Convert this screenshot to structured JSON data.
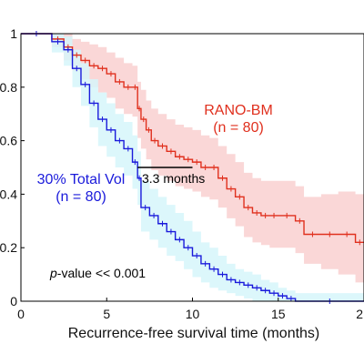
{
  "chart_data": {
    "type": "line",
    "subtype": "kaplan-meier",
    "title": "",
    "xlabel": "Recurrence-free survival time (months)",
    "ylabel": "",
    "xlim": [
      0,
      20
    ],
    "ylim": [
      0,
      1
    ],
    "x_ticks": [
      "0",
      "5",
      "10",
      "15",
      "2"
    ],
    "y_ticks": [
      "0",
      "0.2",
      "0.4",
      "0.6",
      "0.8",
      "1"
    ],
    "grid": false,
    "series": [
      {
        "name": "RANO-BM",
        "count_label": "(n = 80)",
        "color": "#e0301e",
        "band_color": "#f9d0d0",
        "x": [
          0,
          1.8,
          2.5,
          3.0,
          3.5,
          4.0,
          4.5,
          5.0,
          5.5,
          6.0,
          6.5,
          6.8,
          7.0,
          7.3,
          7.6,
          8.0,
          8.5,
          9.0,
          9.5,
          10.0,
          10.5,
          11.0,
          11.5,
          12.0,
          12.5,
          13.0,
          13.5,
          14.0,
          14.5,
          15.0,
          16.0,
          16.5,
          17.5,
          18.5,
          19.5,
          20.0
        ],
        "y": [
          1.0,
          0.98,
          0.95,
          0.92,
          0.9,
          0.88,
          0.87,
          0.85,
          0.82,
          0.8,
          0.8,
          0.72,
          0.68,
          0.64,
          0.6,
          0.58,
          0.56,
          0.54,
          0.53,
          0.52,
          0.5,
          0.5,
          0.46,
          0.42,
          0.39,
          0.35,
          0.33,
          0.32,
          0.32,
          0.32,
          0.3,
          0.25,
          0.25,
          0.25,
          0.22,
          0.22
        ],
        "band_upper": [
          1.0,
          1.0,
          1.0,
          0.98,
          0.97,
          0.96,
          0.95,
          0.93,
          0.91,
          0.89,
          0.88,
          0.82,
          0.79,
          0.75,
          0.72,
          0.7,
          0.68,
          0.66,
          0.65,
          0.64,
          0.62,
          0.61,
          0.58,
          0.55,
          0.52,
          0.48,
          0.46,
          0.45,
          0.45,
          0.45,
          0.43,
          0.39,
          0.4,
          0.41,
          0.4,
          0.4
        ],
        "band_lower": [
          1.0,
          0.95,
          0.9,
          0.86,
          0.83,
          0.8,
          0.78,
          0.76,
          0.72,
          0.7,
          0.69,
          0.61,
          0.57,
          0.53,
          0.49,
          0.47,
          0.45,
          0.43,
          0.42,
          0.41,
          0.39,
          0.38,
          0.35,
          0.31,
          0.28,
          0.24,
          0.22,
          0.21,
          0.2,
          0.2,
          0.18,
          0.14,
          0.12,
          0.1,
          0.07,
          0.06
        ]
      },
      {
        "name": "30% Total Vol",
        "count_label": "(n = 80)",
        "color": "#1a1adb",
        "band_color": "#d6f6fa",
        "x": [
          0,
          1.8,
          2.5,
          3.0,
          3.5,
          4.0,
          4.5,
          5.0,
          5.5,
          6.0,
          6.5,
          6.8,
          7.0,
          7.5,
          8.0,
          8.5,
          9.0,
          9.5,
          10.0,
          10.5,
          11.0,
          11.5,
          12.0,
          12.5,
          13.0,
          13.5,
          14.0,
          14.5,
          15.0,
          15.5,
          16.0,
          20.0
        ],
        "y": [
          1.0,
          0.97,
          0.94,
          0.87,
          0.81,
          0.74,
          0.68,
          0.64,
          0.6,
          0.57,
          0.52,
          0.46,
          0.35,
          0.32,
          0.29,
          0.26,
          0.23,
          0.2,
          0.17,
          0.14,
          0.12,
          0.1,
          0.08,
          0.07,
          0.06,
          0.05,
          0.04,
          0.03,
          0.02,
          0.01,
          0.0,
          0.0
        ],
        "band_upper": [
          1.0,
          1.0,
          0.99,
          0.94,
          0.89,
          0.83,
          0.78,
          0.74,
          0.7,
          0.67,
          0.62,
          0.56,
          0.45,
          0.42,
          0.39,
          0.36,
          0.33,
          0.3,
          0.26,
          0.22,
          0.2,
          0.17,
          0.14,
          0.12,
          0.11,
          0.1,
          0.08,
          0.07,
          0.05,
          0.04,
          0.03,
          0.03
        ],
        "band_lower": [
          1.0,
          0.93,
          0.88,
          0.8,
          0.73,
          0.65,
          0.58,
          0.54,
          0.5,
          0.47,
          0.42,
          0.36,
          0.26,
          0.23,
          0.2,
          0.17,
          0.15,
          0.12,
          0.09,
          0.07,
          0.05,
          0.04,
          0.03,
          0.02,
          0.01,
          0.0,
          0.0,
          0.0,
          0.0,
          0.0,
          0.0,
          0.0
        ]
      }
    ],
    "annotations": {
      "median_gap_label": "3.3 months",
      "median_gap_x": [
        6.8,
        10.0
      ],
      "median_gap_y": 0.5,
      "p_value_prefix": "p",
      "p_value_rest": "-value << 0.001"
    }
  }
}
